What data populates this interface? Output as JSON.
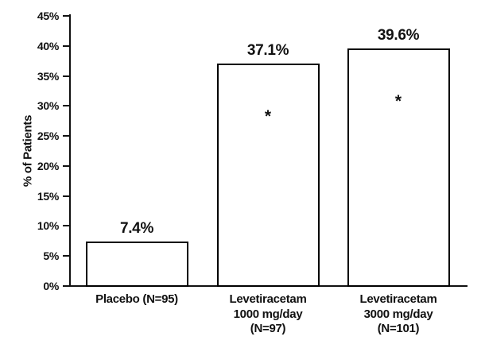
{
  "figure": {
    "background": "#ffffff",
    "text_color": "#111111"
  },
  "chart_data": {
    "type": "bar",
    "title": "",
    "xlabel": "",
    "ylabel": "% of Patients",
    "ylim": [
      0,
      45
    ],
    "grid": "off",
    "legend": "none",
    "ytick_values": [
      0,
      5,
      10,
      15,
      20,
      25,
      30,
      35,
      40,
      45
    ],
    "ytick_labels": [
      "0%",
      "5%",
      "10%",
      "15%",
      "20%",
      "25%",
      "30%",
      "35%",
      "40%",
      "45%"
    ],
    "categories": [
      {
        "lines": [
          "Placebo (N=95)"
        ]
      },
      {
        "lines": [
          "Levetiracetam",
          "1000 mg/day",
          "(N=97)"
        ]
      },
      {
        "lines": [
          "Levetiracetam",
          "3000 mg/day",
          "(N=101)"
        ]
      }
    ],
    "values": [
      7.4,
      37.1,
      39.6
    ],
    "value_labels": [
      "7.4%",
      "37.1%",
      "39.6%"
    ],
    "annotations": [
      "",
      "*",
      "*"
    ],
    "bar_fill": "#ffffff",
    "bar_border": "#000000"
  }
}
